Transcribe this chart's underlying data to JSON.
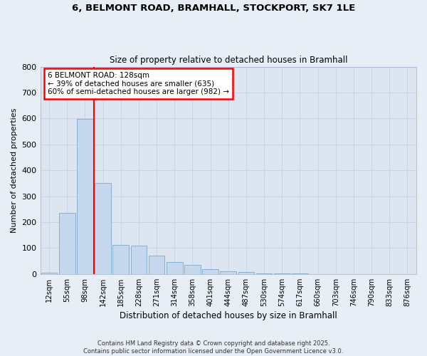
{
  "title_line1": "6, BELMONT ROAD, BRAMHALL, STOCKPORT, SK7 1LE",
  "title_line2": "Size of property relative to detached houses in Bramhall",
  "xlabel": "Distribution of detached houses by size in Bramhall",
  "ylabel": "Number of detached properties",
  "categories": [
    "12sqm",
    "55sqm",
    "98sqm",
    "142sqm",
    "185sqm",
    "228sqm",
    "271sqm",
    "314sqm",
    "358sqm",
    "401sqm",
    "444sqm",
    "487sqm",
    "530sqm",
    "574sqm",
    "617sqm",
    "660sqm",
    "703sqm",
    "746sqm",
    "790sqm",
    "833sqm",
    "876sqm"
  ],
  "values": [
    5,
    237,
    597,
    352,
    113,
    110,
    72,
    45,
    35,
    20,
    10,
    8,
    2,
    1,
    1,
    0,
    0,
    0,
    0,
    0,
    0
  ],
  "bar_color": "#c5d8ee",
  "bar_edge_color": "#8ab0d0",
  "red_line_x": 2.5,
  "red_line_label": "6 BELMONT ROAD: 128sqm",
  "annotation_line2": "← 39% of detached houses are smaller (635)",
  "annotation_line3": "60% of semi-detached houses are larger (982) →",
  "annotation_box_color": "white",
  "annotation_box_edge": "red",
  "ylim": [
    0,
    800
  ],
  "yticks": [
    0,
    100,
    200,
    300,
    400,
    500,
    600,
    700,
    800
  ],
  "grid_color": "#c8d4e8",
  "background_color": "#dde6f0",
  "figure_bg": "#e8eef6",
  "footer_line1": "Contains HM Land Registry data © Crown copyright and database right 2025.",
  "footer_line2": "Contains public sector information licensed under the Open Government Licence v3.0."
}
